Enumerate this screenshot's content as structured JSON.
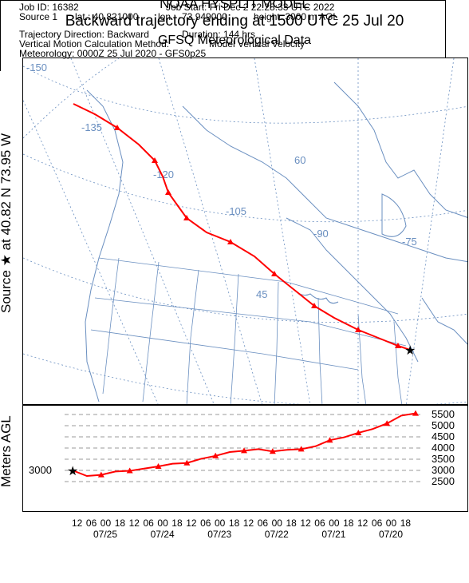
{
  "header": {
    "model": "NOAA HYSPLIT MODEL",
    "title": "Backward trajectory ending at 1500 UTC 25 Jul 20",
    "meteo": "GFSQ Meteorological Data"
  },
  "side": {
    "source_label": "Source ★ at  40.82 N   73.95 W",
    "height_label": "Meters AGL"
  },
  "map": {
    "grid_labels": [
      "-150",
      "-135",
      "-120",
      "-105",
      "-90",
      "-75",
      "60",
      "45"
    ],
    "colors": {
      "grid": "#6a8fc0",
      "coast": "#6a8fc0",
      "trajectory": "#ff0000"
    },
    "source": {
      "lat": 40.82,
      "lon": -73.95,
      "marker": "star-icon"
    }
  },
  "chart_data": {
    "type": "line",
    "title": "",
    "ylabel": "Meters AGL",
    "y_ticks": [
      "5500",
      "5000",
      "4500",
      "4000",
      "3500",
      "3000",
      "2500"
    ],
    "start_label": "3000",
    "x_ticks": [
      "12",
      "06",
      "00",
      "18",
      "12",
      "06",
      "00",
      "18",
      "12",
      "06",
      "00",
      "18",
      "12",
      "06",
      "00",
      "18",
      "12",
      "06",
      "00",
      "18",
      "12",
      "06",
      "00",
      "18"
    ],
    "date_labels": [
      "07/25",
      "07/24",
      "07/23",
      "07/22",
      "07/21",
      "07/20"
    ],
    "series": [
      {
        "x_hours_back": [
          0,
          6,
          12,
          18,
          24,
          30,
          36,
          42,
          48,
          54,
          60,
          66,
          72,
          78,
          84,
          90,
          96,
          102,
          108,
          114,
          120,
          126,
          132,
          138,
          144
        ],
        "values": [
          3000,
          2750,
          2800,
          2950,
          2980,
          3080,
          3180,
          3300,
          3330,
          3520,
          3650,
          3820,
          3880,
          3950,
          3850,
          3920,
          3950,
          4080,
          4350,
          4480,
          4680,
          4850,
          5100,
          5450,
          5550
        ]
      }
    ],
    "color": "#ff0000"
  },
  "info": {
    "job_id": "Job ID: 16382",
    "job_start": "Job Start: Fri Dec  2 22:28:33 UTC 2022",
    "source1": "Source 1",
    "lat": "lat.: 40.821000",
    "lon": "lon.: -73.949000",
    "height": "height: 3000 m AGL",
    "direction": "Trajectory Direction: Backward",
    "duration": "Duration: 144 hrs",
    "vertical": "Vertical Motion Calculation Method:",
    "vertical_val": "Model Vertical Velocity",
    "meteorology": "Meteorology: 0000Z 25 Jul 2020 - GFS0p25"
  }
}
